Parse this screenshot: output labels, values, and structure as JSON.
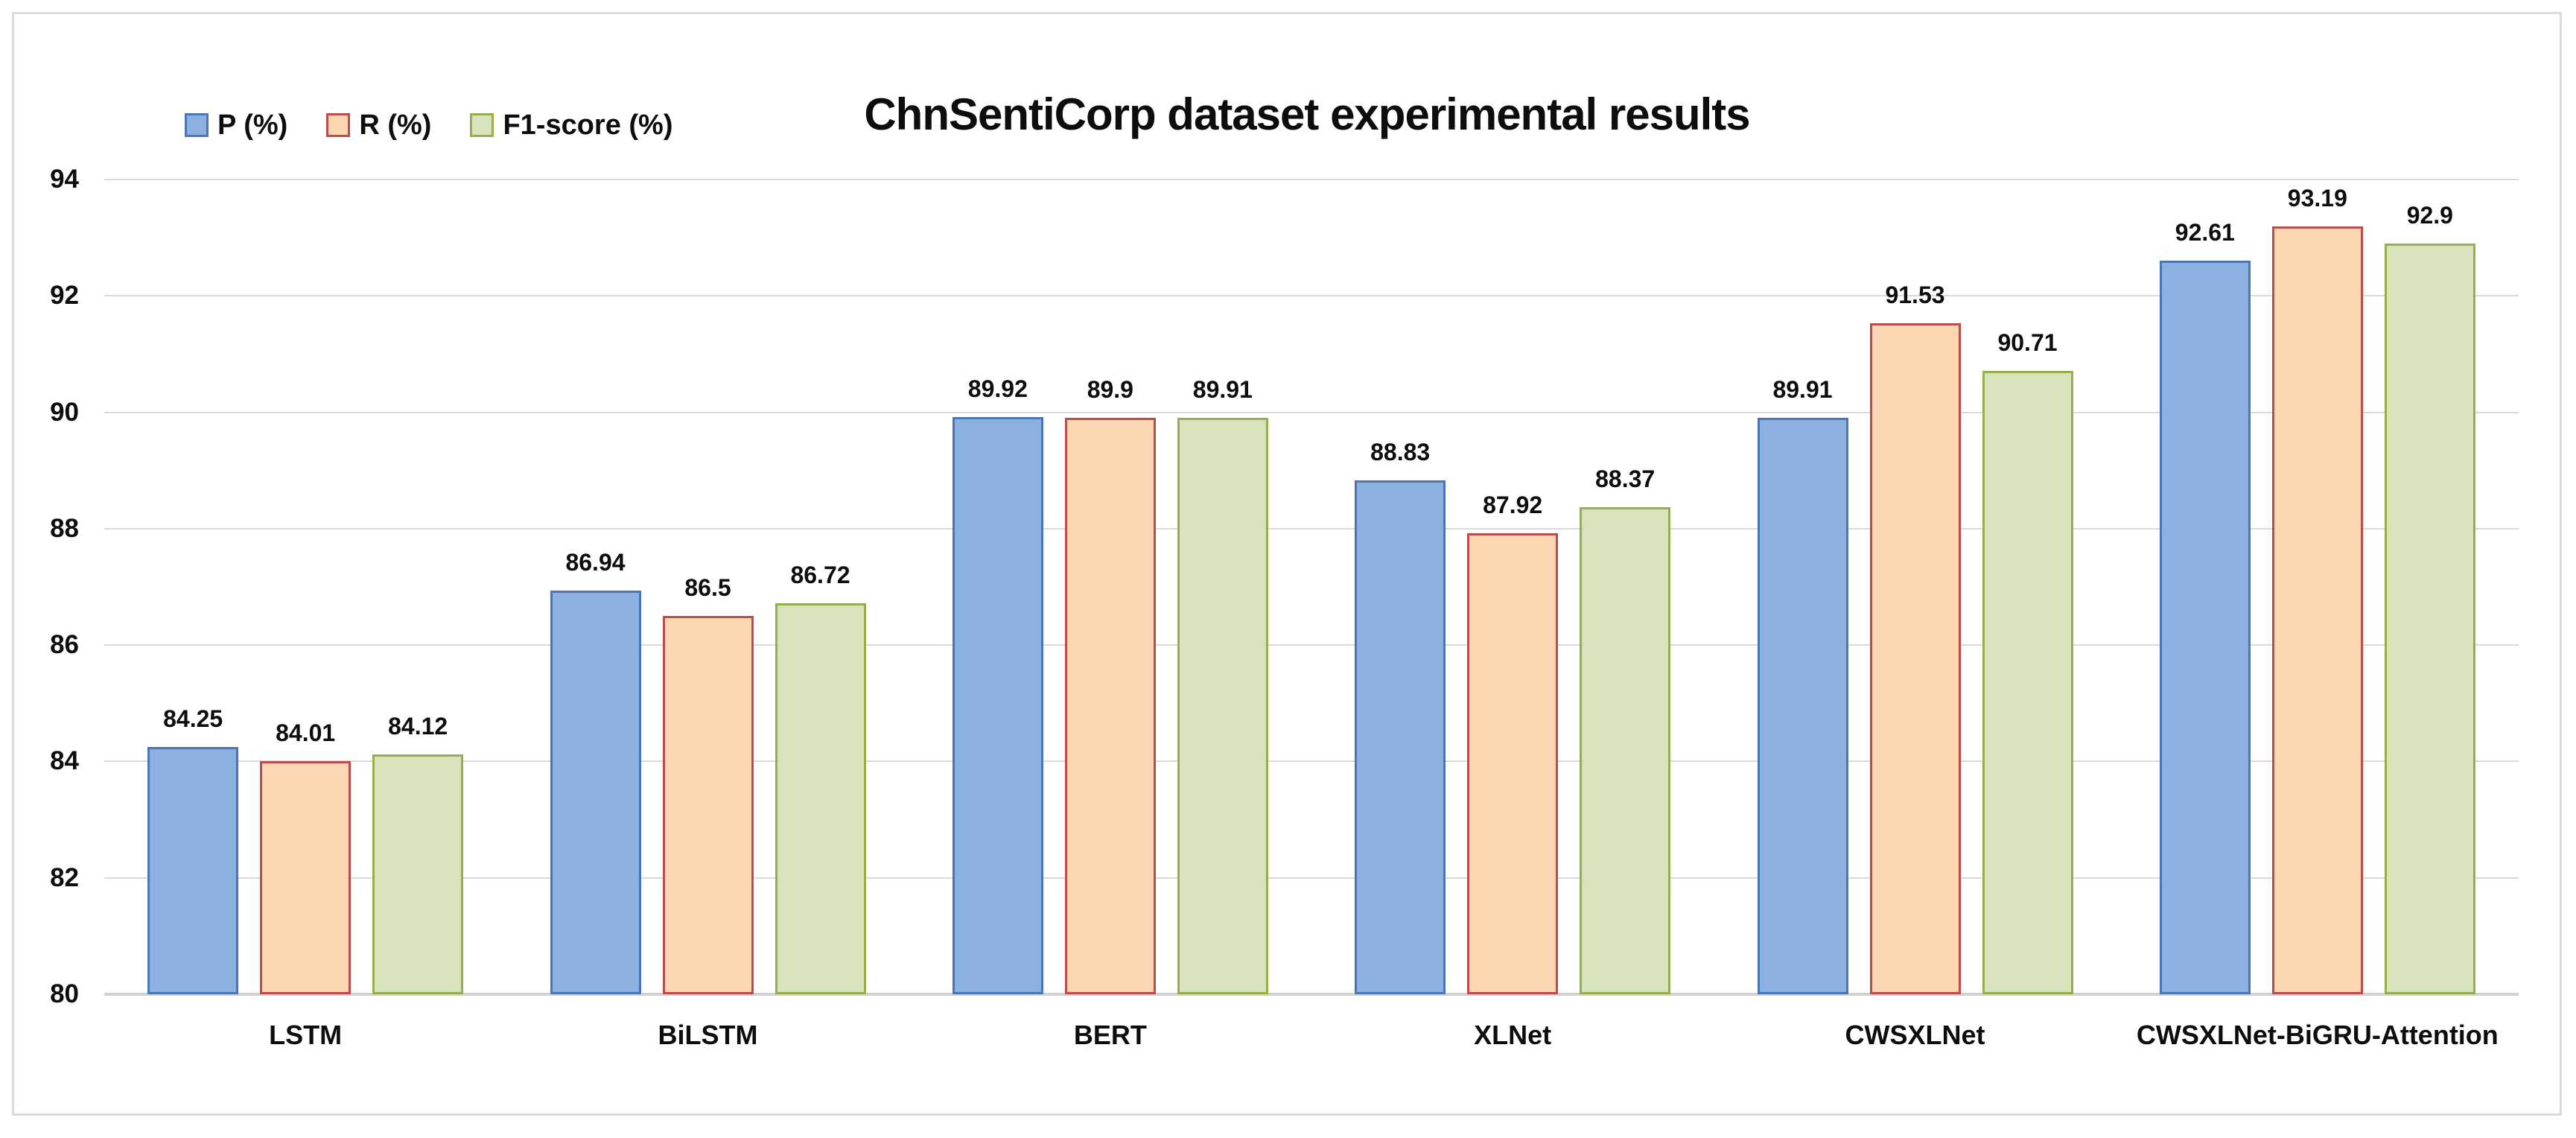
{
  "chart_data": {
    "type": "bar",
    "title": "ChnSentiCorp dataset experimental results",
    "categories": [
      "LSTM",
      "BiLSTM",
      "BERT",
      "XLNet",
      "CWSXLNet",
      "CWSXLNet-BiGRU-Attention"
    ],
    "series": [
      {
        "name": "P (%)",
        "values": [
          84.25,
          86.94,
          89.92,
          88.83,
          89.91,
          92.61
        ],
        "fill": "#8CB0E0",
        "border": "#4A76B8"
      },
      {
        "name": "R (%)",
        "values": [
          84.01,
          86.5,
          89.9,
          87.92,
          91.53,
          93.19
        ],
        "fill": "#FCD5B1",
        "border": "#BD4B4B"
      },
      {
        "name": "F1-score (%)",
        "values": [
          84.12,
          86.72,
          89.91,
          88.37,
          90.71,
          92.9
        ],
        "fill": "#D8E3BC",
        "border": "#94B04C"
      }
    ],
    "ylim": [
      80,
      94
    ],
    "yticks": [
      80,
      82,
      84,
      86,
      88,
      90,
      92,
      94
    ],
    "grid": true,
    "legend_position": "top-left",
    "value_labels": true,
    "gridline_color": "#DADADA",
    "baseline_color": "#D0D0D0",
    "frame_color": "#DBDBDB",
    "text_color": "#0D0D0D"
  }
}
